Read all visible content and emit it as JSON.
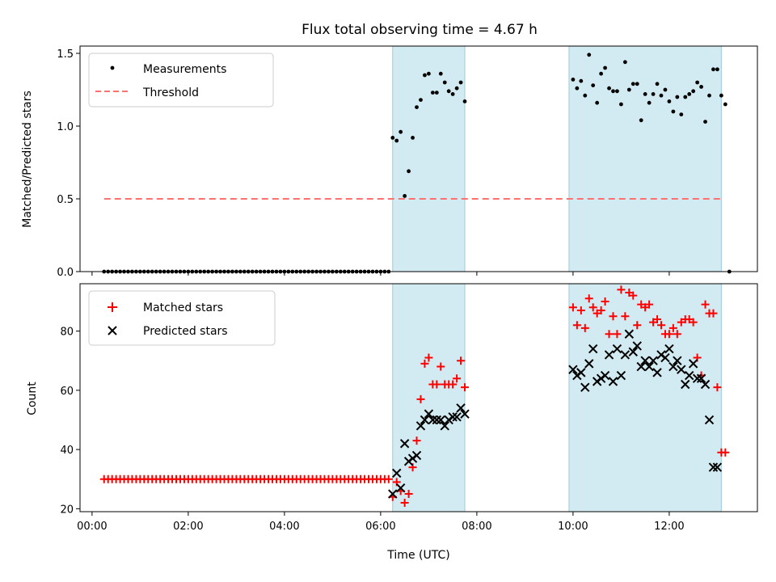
{
  "chart_data": {
    "type": "scatter",
    "title": "Flux total observing time = 4.67 h",
    "shaded_regions": [
      {
        "start": "06:15",
        "end": "07:45"
      },
      {
        "start": "09:55",
        "end": "13:05"
      }
    ],
    "colors": {
      "shade": "#add8e6",
      "measurement": "#000000",
      "threshold": "#ff7070",
      "matched": "#ff0000",
      "predicted": "#000000"
    },
    "top": {
      "ylabel": "Matched/Predicted stars",
      "ylim": [
        0,
        1.55
      ],
      "yticks": [
        "0.0",
        "0.5",
        "1.0",
        "1.5"
      ],
      "ytick_values": [
        0,
        0.5,
        1.0,
        1.5
      ],
      "threshold": {
        "value": 0.5,
        "x_start": "00:15",
        "x_end": "13:05"
      },
      "legend": [
        "Measurements",
        "Threshold"
      ],
      "measurement_points": [
        [
          "00:15",
          0
        ],
        [
          "00:20",
          0
        ],
        [
          "00:25",
          0
        ],
        [
          "00:30",
          0
        ],
        [
          "00:35",
          0
        ],
        [
          "00:40",
          0
        ],
        [
          "00:45",
          0
        ],
        [
          "00:50",
          0
        ],
        [
          "00:55",
          0
        ],
        [
          "01:00",
          0
        ],
        [
          "01:05",
          0
        ],
        [
          "01:10",
          0
        ],
        [
          "01:15",
          0
        ],
        [
          "01:20",
          0
        ],
        [
          "01:25",
          0
        ],
        [
          "01:30",
          0
        ],
        [
          "01:35",
          0
        ],
        [
          "01:40",
          0
        ],
        [
          "01:45",
          0
        ],
        [
          "01:50",
          0
        ],
        [
          "01:55",
          0
        ],
        [
          "02:00",
          0
        ],
        [
          "02:05",
          0
        ],
        [
          "02:10",
          0
        ],
        [
          "02:15",
          0
        ],
        [
          "02:20",
          0
        ],
        [
          "02:25",
          0
        ],
        [
          "02:30",
          0
        ],
        [
          "02:35",
          0
        ],
        [
          "02:40",
          0
        ],
        [
          "02:45",
          0
        ],
        [
          "02:50",
          0
        ],
        [
          "02:55",
          0
        ],
        [
          "03:00",
          0
        ],
        [
          "03:05",
          0
        ],
        [
          "03:10",
          0
        ],
        [
          "03:15",
          0
        ],
        [
          "03:20",
          0
        ],
        [
          "03:25",
          0
        ],
        [
          "03:30",
          0
        ],
        [
          "03:35",
          0
        ],
        [
          "03:40",
          0
        ],
        [
          "03:45",
          0
        ],
        [
          "03:50",
          0
        ],
        [
          "03:55",
          0
        ],
        [
          "04:00",
          0
        ],
        [
          "04:05",
          0
        ],
        [
          "04:10",
          0
        ],
        [
          "04:15",
          0
        ],
        [
          "04:20",
          0
        ],
        [
          "04:25",
          0
        ],
        [
          "04:30",
          0
        ],
        [
          "04:35",
          0
        ],
        [
          "04:40",
          0
        ],
        [
          "04:45",
          0
        ],
        [
          "04:50",
          0
        ],
        [
          "04:55",
          0
        ],
        [
          "05:00",
          0
        ],
        [
          "05:05",
          0
        ],
        [
          "05:10",
          0
        ],
        [
          "05:15",
          0
        ],
        [
          "05:20",
          0
        ],
        [
          "05:25",
          0
        ],
        [
          "05:30",
          0
        ],
        [
          "05:35",
          0
        ],
        [
          "05:40",
          0
        ],
        [
          "05:45",
          0
        ],
        [
          "05:50",
          0
        ],
        [
          "05:55",
          0
        ],
        [
          "06:00",
          0
        ],
        [
          "06:05",
          0
        ],
        [
          "06:10",
          0
        ],
        [
          "06:15",
          0.92
        ],
        [
          "06:20",
          0.9
        ],
        [
          "06:25",
          0.96
        ],
        [
          "06:30",
          0.52
        ],
        [
          "06:35",
          0.69
        ],
        [
          "06:40",
          0.92
        ],
        [
          "06:45",
          1.13
        ],
        [
          "06:50",
          1.18
        ],
        [
          "06:55",
          1.35
        ],
        [
          "07:00",
          1.36
        ],
        [
          "07:05",
          1.23
        ],
        [
          "07:10",
          1.23
        ],
        [
          "07:15",
          1.36
        ],
        [
          "07:20",
          1.3
        ],
        [
          "07:25",
          1.24
        ],
        [
          "07:30",
          1.22
        ],
        [
          "07:35",
          1.26
        ],
        [
          "07:40",
          1.3
        ],
        [
          "07:45",
          1.17
        ],
        [
          "10:00",
          1.32
        ],
        [
          "10:05",
          1.26
        ],
        [
          "10:10",
          1.31
        ],
        [
          "10:15",
          1.21
        ],
        [
          "10:20",
          1.49
        ],
        [
          "10:25",
          1.28
        ],
        [
          "10:30",
          1.16
        ],
        [
          "10:35",
          1.36
        ],
        [
          "10:40",
          1.4
        ],
        [
          "10:45",
          1.26
        ],
        [
          "10:50",
          1.24
        ],
        [
          "10:55",
          1.24
        ],
        [
          "11:00",
          1.15
        ],
        [
          "11:05",
          1.44
        ],
        [
          "11:10",
          1.25
        ],
        [
          "11:15",
          1.29
        ],
        [
          "11:20",
          1.29
        ],
        [
          "11:25",
          1.04
        ],
        [
          "11:30",
          1.22
        ],
        [
          "11:35",
          1.16
        ],
        [
          "11:40",
          1.22
        ],
        [
          "11:45",
          1.29
        ],
        [
          "11:50",
          1.21
        ],
        [
          "11:55",
          1.25
        ],
        [
          "12:00",
          1.17
        ],
        [
          "12:05",
          1.1
        ],
        [
          "12:10",
          1.2
        ],
        [
          "12:15",
          1.08
        ],
        [
          "12:20",
          1.2
        ],
        [
          "12:25",
          1.22
        ],
        [
          "12:30",
          1.24
        ],
        [
          "12:35",
          1.3
        ],
        [
          "12:40",
          1.27
        ],
        [
          "12:45",
          1.03
        ],
        [
          "12:50",
          1.21
        ],
        [
          "12:55",
          1.39
        ],
        [
          "13:00",
          1.39
        ],
        [
          "13:05",
          1.21
        ],
        [
          "13:10",
          1.15
        ],
        [
          "13:15",
          0
        ]
      ]
    },
    "bottom": {
      "xlabel": "Time (UTC)",
      "ylabel": "Count",
      "ylim": [
        19,
        96
      ],
      "yticks": [
        "20",
        "40",
        "60",
        "80"
      ],
      "ytick_values": [
        20,
        40,
        60,
        80
      ],
      "xlim": [
        "-00:15",
        "13:50"
      ],
      "xticks": [
        "00:00",
        "02:00",
        "04:00",
        "06:00",
        "08:00",
        "10:00",
        "12:00"
      ],
      "legend": [
        "Matched stars",
        "Predicted stars"
      ],
      "matched": [
        [
          "00:15",
          30
        ],
        [
          "00:20",
          30
        ],
        [
          "00:25",
          30
        ],
        [
          "00:30",
          30
        ],
        [
          "00:35",
          30
        ],
        [
          "00:40",
          30
        ],
        [
          "00:45",
          30
        ],
        [
          "00:50",
          30
        ],
        [
          "00:55",
          30
        ],
        [
          "01:00",
          30
        ],
        [
          "01:05",
          30
        ],
        [
          "01:10",
          30
        ],
        [
          "01:15",
          30
        ],
        [
          "01:20",
          30
        ],
        [
          "01:25",
          30
        ],
        [
          "01:30",
          30
        ],
        [
          "01:35",
          30
        ],
        [
          "01:40",
          30
        ],
        [
          "01:45",
          30
        ],
        [
          "01:50",
          30
        ],
        [
          "01:55",
          30
        ],
        [
          "02:00",
          30
        ],
        [
          "02:05",
          30
        ],
        [
          "02:10",
          30
        ],
        [
          "02:15",
          30
        ],
        [
          "02:20",
          30
        ],
        [
          "02:25",
          30
        ],
        [
          "02:30",
          30
        ],
        [
          "02:35",
          30
        ],
        [
          "02:40",
          30
        ],
        [
          "02:45",
          30
        ],
        [
          "02:50",
          30
        ],
        [
          "02:55",
          30
        ],
        [
          "03:00",
          30
        ],
        [
          "03:05",
          30
        ],
        [
          "03:10",
          30
        ],
        [
          "03:15",
          30
        ],
        [
          "03:20",
          30
        ],
        [
          "03:25",
          30
        ],
        [
          "03:30",
          30
        ],
        [
          "03:35",
          30
        ],
        [
          "03:40",
          30
        ],
        [
          "03:45",
          30
        ],
        [
          "03:50",
          30
        ],
        [
          "03:55",
          30
        ],
        [
          "04:00",
          30
        ],
        [
          "04:05",
          30
        ],
        [
          "04:10",
          30
        ],
        [
          "04:15",
          30
        ],
        [
          "04:20",
          30
        ],
        [
          "04:25",
          30
        ],
        [
          "04:30",
          30
        ],
        [
          "04:35",
          30
        ],
        [
          "04:40",
          30
        ],
        [
          "04:45",
          30
        ],
        [
          "04:50",
          30
        ],
        [
          "04:55",
          30
        ],
        [
          "05:00",
          30
        ],
        [
          "05:05",
          30
        ],
        [
          "05:10",
          30
        ],
        [
          "05:15",
          30
        ],
        [
          "05:20",
          30
        ],
        [
          "05:25",
          30
        ],
        [
          "05:30",
          30
        ],
        [
          "05:35",
          30
        ],
        [
          "05:40",
          30
        ],
        [
          "05:45",
          30
        ],
        [
          "05:50",
          30
        ],
        [
          "05:55",
          30
        ],
        [
          "06:00",
          30
        ],
        [
          "06:05",
          30
        ],
        [
          "06:10",
          30
        ],
        [
          "06:15",
          24
        ],
        [
          "06:20",
          29
        ],
        [
          "06:25",
          26
        ],
        [
          "06:30",
          22
        ],
        [
          "06:35",
          25
        ],
        [
          "06:40",
          34
        ],
        [
          "06:45",
          43
        ],
        [
          "06:50",
          57
        ],
        [
          "06:55",
          69
        ],
        [
          "07:00",
          71
        ],
        [
          "07:05",
          62
        ],
        [
          "07:10",
          62
        ],
        [
          "07:15",
          68
        ],
        [
          "07:20",
          62
        ],
        [
          "07:25",
          62
        ],
        [
          "07:30",
          62
        ],
        [
          "07:35",
          64
        ],
        [
          "07:40",
          70
        ],
        [
          "07:45",
          61
        ],
        [
          "10:00",
          88
        ],
        [
          "10:05",
          82
        ],
        [
          "10:10",
          87
        ],
        [
          "10:15",
          81
        ],
        [
          "10:20",
          91
        ],
        [
          "10:25",
          88
        ],
        [
          "10:30",
          86
        ],
        [
          "10:35",
          87
        ],
        [
          "10:40",
          90
        ],
        [
          "10:45",
          79
        ],
        [
          "10:50",
          85
        ],
        [
          "10:55",
          79
        ],
        [
          "11:00",
          94
        ],
        [
          "11:05",
          85
        ],
        [
          "11:10",
          93
        ],
        [
          "11:15",
          92
        ],
        [
          "11:20",
          82
        ],
        [
          "11:25",
          89
        ],
        [
          "11:30",
          88
        ],
        [
          "11:35",
          89
        ],
        [
          "11:40",
          83
        ],
        [
          "11:45",
          84
        ],
        [
          "11:50",
          82
        ],
        [
          "11:55",
          79
        ],
        [
          "12:00",
          79
        ],
        [
          "12:05",
          81
        ],
        [
          "12:10",
          79
        ],
        [
          "12:15",
          83
        ],
        [
          "12:20",
          84
        ],
        [
          "12:25",
          84
        ],
        [
          "12:30",
          83
        ],
        [
          "12:35",
          71
        ],
        [
          "12:40",
          65
        ],
        [
          "12:45",
          89
        ],
        [
          "12:50",
          86
        ],
        [
          "12:55",
          86
        ],
        [
          "13:00",
          61
        ],
        [
          "13:05",
          39
        ],
        [
          "13:10",
          39
        ]
      ],
      "predicted": [
        [
          "06:15",
          25
        ],
        [
          "06:20",
          32
        ],
        [
          "06:25",
          27
        ],
        [
          "06:30",
          42
        ],
        [
          "06:35",
          36
        ],
        [
          "06:40",
          37
        ],
        [
          "06:45",
          38
        ],
        [
          "06:50",
          48
        ],
        [
          "06:55",
          50
        ],
        [
          "07:00",
          52
        ],
        [
          "07:05",
          50
        ],
        [
          "07:10",
          50
        ],
        [
          "07:15",
          50
        ],
        [
          "07:20",
          48
        ],
        [
          "07:25",
          50
        ],
        [
          "07:30",
          51
        ],
        [
          "07:35",
          51
        ],
        [
          "07:40",
          54
        ],
        [
          "07:45",
          52
        ],
        [
          "10:00",
          67
        ],
        [
          "10:05",
          65
        ],
        [
          "10:10",
          66
        ],
        [
          "10:15",
          61
        ],
        [
          "10:20",
          69
        ],
        [
          "10:25",
          74
        ],
        [
          "10:30",
          63
        ],
        [
          "10:35",
          64
        ],
        [
          "10:40",
          65
        ],
        [
          "10:45",
          72
        ],
        [
          "10:50",
          63
        ],
        [
          "10:55",
          74
        ],
        [
          "11:00",
          65
        ],
        [
          "11:05",
          72
        ],
        [
          "11:10",
          79
        ],
        [
          "11:15",
          73
        ],
        [
          "11:20",
          75
        ],
        [
          "11:25",
          68
        ],
        [
          "11:30",
          70
        ],
        [
          "11:35",
          68
        ],
        [
          "11:40",
          70
        ],
        [
          "11:45",
          66
        ],
        [
          "11:50",
          72
        ],
        [
          "11:55",
          71
        ],
        [
          "12:00",
          74
        ],
        [
          "12:05",
          68
        ],
        [
          "12:10",
          70
        ],
        [
          "12:15",
          67
        ],
        [
          "12:20",
          62
        ],
        [
          "12:25",
          65
        ],
        [
          "12:30",
          69
        ],
        [
          "12:35",
          64
        ],
        [
          "12:40",
          64
        ],
        [
          "12:45",
          62
        ],
        [
          "12:50",
          50
        ],
        [
          "12:55",
          34
        ],
        [
          "13:00",
          34
        ]
      ]
    }
  }
}
